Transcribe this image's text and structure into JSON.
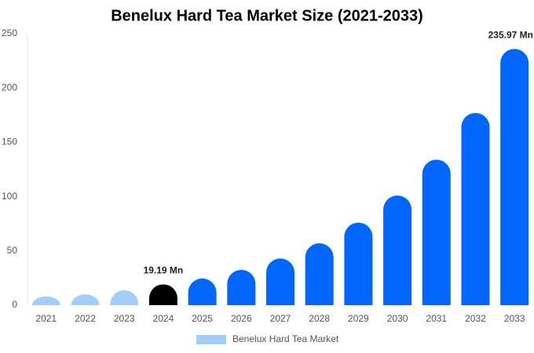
{
  "chart_data": {
    "type": "bar",
    "title": "Benelux Hard Tea Market Size (2021-2033)",
    "categories": [
      "2021",
      "2022",
      "2023",
      "2024",
      "2025",
      "2026",
      "2027",
      "2028",
      "2029",
      "2030",
      "2031",
      "2032",
      "2033"
    ],
    "series": [
      {
        "name": "Benelux Hard Tea Market",
        "color": "#a3cdfb",
        "colors": [
          "#a3cdfb",
          "#a3cdfb",
          "#a3cdfb",
          "#000000",
          "#0066ff",
          "#0066ff",
          "#0066ff",
          "#0066ff",
          "#0066ff",
          "#0066ff",
          "#0066ff",
          "#0066ff",
          "#0066ff"
        ],
        "values": [
          8,
          10,
          13.7,
          19.19,
          24.6,
          32.5,
          43,
          57,
          76,
          101,
          134,
          177,
          235.97
        ],
        "value_labels": [
          null,
          null,
          null,
          "19.19 Mn",
          null,
          null,
          null,
          null,
          null,
          null,
          null,
          null,
          "235.97 Mn"
        ]
      }
    ],
    "ylim": [
      0,
      250
    ],
    "yticks": [
      0,
      50,
      100,
      150,
      200,
      250
    ],
    "grid": false
  }
}
